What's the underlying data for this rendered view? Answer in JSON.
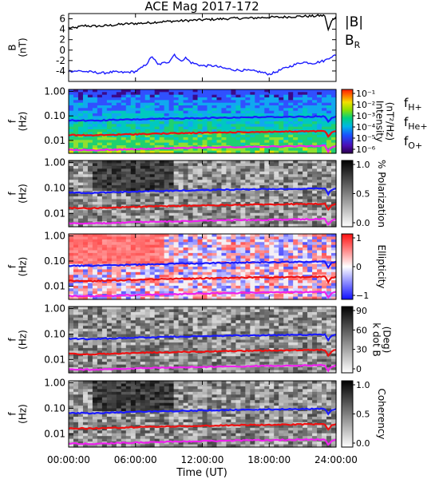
{
  "chart_data": {
    "type": "line",
    "title": "ACE Mag 2017-172",
    "xlabel": "Time (UT)",
    "x_ticks": [
      "00:00:00",
      "06:00:00",
      "12:00:00",
      "18:00:00",
      "24:00:00"
    ],
    "xlim": [
      0,
      24
    ],
    "panels": [
      {
        "kind": "line",
        "ylabel": "B\n(nT)",
        "ylim": [
          -6,
          7
        ],
        "y_ticks": [
          "6",
          "4",
          "2",
          "0",
          "-2",
          "-4"
        ],
        "y_tick_values": [
          6,
          4,
          2,
          0,
          -2,
          -4
        ],
        "legend": [
          {
            "label": "|B|",
            "color": "#000000"
          },
          {
            "label": "B",
            "sub": "R",
            "color": "#1a1aff"
          }
        ],
        "series": [
          {
            "name": "|B|",
            "color": "#000000",
            "x": [
              0,
              0.5,
              1,
              1.5,
              2,
              3,
              4,
              5,
              6,
              7,
              8,
              9,
              10,
              11,
              12,
              13,
              14,
              15,
              16,
              17,
              18,
              19,
              20,
              21,
              22,
              22.5,
              23,
              23.3,
              23.6,
              24
            ],
            "y": [
              4.3,
              4.2,
              4.5,
              4.7,
              4.6,
              4.6,
              4.8,
              5.0,
              5.1,
              5.2,
              5.4,
              5.5,
              5.6,
              5.7,
              5.8,
              5.9,
              6.0,
              6.1,
              6.1,
              6.2,
              6.3,
              6.3,
              6.4,
              6.5,
              6.5,
              6.6,
              6.6,
              3.8,
              5.5,
              6.4
            ]
          },
          {
            "name": "B_R",
            "color": "#1a1aff",
            "x": [
              0,
              1,
              2,
              3,
              4,
              5,
              6,
              6.5,
              7,
              7.5,
              8,
              9,
              9.5,
              10,
              10.5,
              11,
              12,
              13,
              14,
              15,
              16,
              17,
              18,
              18.5,
              19,
              20,
              21,
              22,
              23,
              23.5,
              24
            ],
            "y": [
              -4.0,
              -4.0,
              -4.2,
              -4.4,
              -4.2,
              -4.3,
              -4.1,
              -3.5,
              -2.6,
              -1.2,
              -2.8,
              -2.2,
              -0.8,
              -2.1,
              -1.5,
              -2.4,
              -3.0,
              -3.0,
              -3.5,
              -3.8,
              -3.9,
              -4.1,
              -4.6,
              -4.3,
              -3.8,
              -3.0,
              -2.3,
              -2.5,
              -2.0,
              -1.3,
              -1.0
            ]
          }
        ]
      },
      {
        "kind": "spectrogram",
        "ylabel": "f\n(Hz)",
        "ylim": [
          0.003,
          1.2
        ],
        "y_ticks": [
          "1.00",
          "0.10",
          "0.01"
        ],
        "y_tick_values": [
          1,
          0.1,
          0.01
        ],
        "colorbar": {
          "label": "Intensity\n(nT²/Hz)",
          "ticks": [
            "10⁻¹",
            "10⁻²",
            "10⁻³",
            "10⁻⁴",
            "10⁻⁵",
            "10⁻⁶"
          ],
          "range": [
            1e-06,
            0.1
          ],
          "scale": "log",
          "palette": "rainbow"
        },
        "legend": [
          {
            "label": "f",
            "sub": "H+",
            "color": "#1a1aff"
          },
          {
            "label": "f",
            "sub": "He+",
            "color": "#ee1111"
          },
          {
            "label": "f",
            "sub": "O+",
            "color": "#ee22ee"
          }
        ]
      },
      {
        "kind": "spectrogram",
        "ylabel": "f\n(Hz)",
        "ylim": [
          0.003,
          1.2
        ],
        "y_ticks": [
          "1.00",
          "0.10",
          "0.01"
        ],
        "y_tick_values": [
          1,
          0.1,
          0.01
        ],
        "colorbar": {
          "label": "% Polarization",
          "ticks": [
            "1.0",
            "0.5",
            "0.0"
          ],
          "range": [
            0,
            1
          ],
          "palette": "gray"
        }
      },
      {
        "kind": "spectrogram",
        "ylabel": "f\n(Hz)",
        "ylim": [
          0.003,
          1.2
        ],
        "y_ticks": [
          "1.00",
          "0.10",
          "0.01"
        ],
        "y_tick_values": [
          1,
          0.1,
          0.01
        ],
        "colorbar": {
          "label": "Ellipticity",
          "ticks": [
            "1",
            "0",
            "−1"
          ],
          "range": [
            -1,
            1
          ],
          "palette": "bwr"
        }
      },
      {
        "kind": "spectrogram",
        "ylabel": "f\n(Hz)",
        "ylim": [
          0.003,
          1.2
        ],
        "y_ticks": [
          "1.00",
          "0.10",
          "0.01"
        ],
        "y_tick_values": [
          1,
          0.1,
          0.01
        ],
        "colorbar": {
          "label": "k dot B\n(Deg)",
          "ticks": [
            "90",
            "60",
            "30",
            "0"
          ],
          "range": [
            0,
            90
          ],
          "palette": "gray"
        }
      },
      {
        "kind": "spectrogram",
        "ylabel": "f\n(Hz)",
        "ylim": [
          0.003,
          1.2
        ],
        "y_ticks": [
          "1.00",
          "0.10",
          "0.01"
        ],
        "y_tick_values": [
          1,
          0.1,
          0.01
        ],
        "colorbar": {
          "label": "Coherency",
          "ticks": [
            "1.0",
            "0.5",
            "0.0"
          ],
          "range": [
            0,
            1
          ],
          "palette": "gray"
        }
      }
    ],
    "gyrofrequency_curves": [
      {
        "name": "f_H+",
        "color": "#1a1aff",
        "x": [
          0,
          2,
          4,
          6,
          8,
          10,
          12,
          14,
          16,
          18,
          20,
          22,
          23,
          23.3,
          23.6,
          24
        ],
        "y": [
          0.066,
          0.064,
          0.068,
          0.072,
          0.075,
          0.079,
          0.082,
          0.085,
          0.088,
          0.09,
          0.092,
          0.094,
          0.095,
          0.058,
          0.085,
          0.095
        ]
      },
      {
        "name": "f_He+",
        "color": "#ee1111",
        "x": [
          0,
          2,
          4,
          6,
          8,
          10,
          12,
          14,
          16,
          18,
          20,
          22,
          23,
          23.3,
          23.6,
          24
        ],
        "y": [
          0.0165,
          0.016,
          0.017,
          0.018,
          0.019,
          0.0197,
          0.0205,
          0.0212,
          0.022,
          0.0225,
          0.023,
          0.0235,
          0.0238,
          0.0145,
          0.021,
          0.0238
        ]
      },
      {
        "name": "f_O+",
        "color": "#ee22ee",
        "x": [
          0,
          2,
          4,
          6,
          8,
          10,
          12,
          14,
          16,
          18,
          20,
          22,
          23,
          23.3,
          23.6,
          24
        ],
        "y": [
          0.0041,
          0.004,
          0.0042,
          0.0045,
          0.0047,
          0.0049,
          0.0051,
          0.0053,
          0.0055,
          0.0056,
          0.0058,
          0.0059,
          0.006,
          0.0036,
          0.0053,
          0.006
        ]
      }
    ]
  }
}
